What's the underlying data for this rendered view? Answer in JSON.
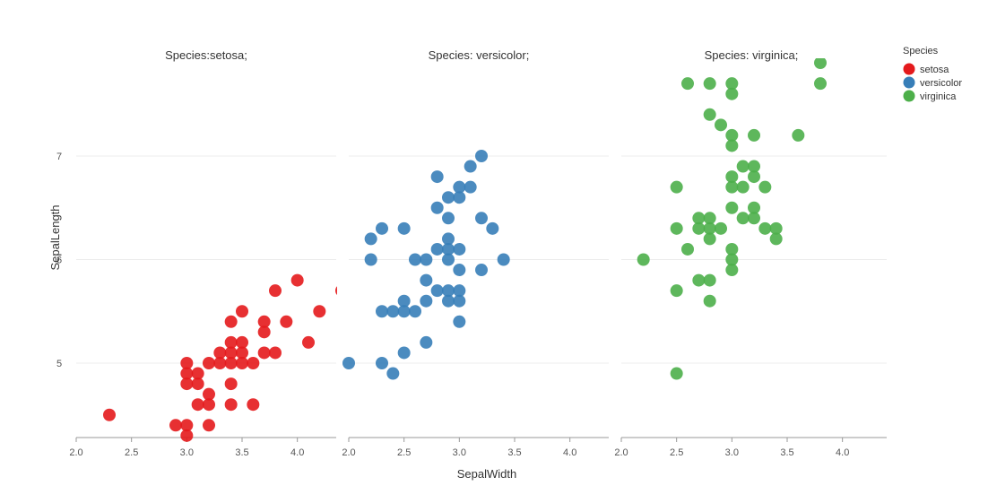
{
  "chart_data": {
    "type": "scatter",
    "xlabel": "SepalWidth",
    "ylabel": "SepalLength",
    "xlim": [
      2.0,
      4.4
    ],
    "ylim": [
      4.3,
      7.9
    ],
    "x_ticks": [
      "2.0",
      "2.5",
      "3.0",
      "3.5",
      "4.0"
    ],
    "y_ticks": [
      "5",
      "6",
      "7"
    ],
    "grid": true,
    "legend": {
      "title": "Species",
      "placement": "top-right",
      "entries": [
        "setosa",
        "versicolor",
        "virginica"
      ]
    },
    "facets": [
      {
        "title": "Species:setosa;",
        "name": "setosa",
        "color": "#e41a1c",
        "points": [
          [
            2.3,
            4.5
          ],
          [
            2.9,
            4.4
          ],
          [
            3.0,
            4.4
          ],
          [
            3.0,
            4.3
          ],
          [
            3.2,
            4.4
          ],
          [
            3.0,
            5.0
          ],
          [
            3.0,
            4.9
          ],
          [
            3.0,
            4.8
          ],
          [
            3.1,
            4.9
          ],
          [
            3.1,
            4.8
          ],
          [
            3.1,
            4.6
          ],
          [
            3.2,
            5.0
          ],
          [
            3.2,
            4.7
          ],
          [
            3.2,
            4.6
          ],
          [
            3.3,
            5.0
          ],
          [
            3.3,
            5.1
          ],
          [
            3.4,
            5.4
          ],
          [
            3.4,
            5.2
          ],
          [
            3.4,
            5.1
          ],
          [
            3.4,
            5.0
          ],
          [
            3.4,
            4.8
          ],
          [
            3.4,
            4.6
          ],
          [
            3.5,
            5.5
          ],
          [
            3.5,
            5.2
          ],
          [
            3.5,
            5.1
          ],
          [
            3.5,
            5.0
          ],
          [
            3.6,
            5.0
          ],
          [
            3.6,
            4.6
          ],
          [
            3.7,
            5.4
          ],
          [
            3.7,
            5.3
          ],
          [
            3.7,
            5.1
          ],
          [
            3.8,
            5.7
          ],
          [
            3.8,
            5.1
          ],
          [
            3.9,
            5.4
          ],
          [
            4.0,
            5.8
          ],
          [
            4.1,
            5.2
          ],
          [
            4.2,
            5.5
          ],
          [
            4.4,
            5.7
          ]
        ]
      },
      {
        "title": "Species: versicolor;",
        "name": "versicolor",
        "color": "#377eb8",
        "points": [
          [
            2.0,
            5.0
          ],
          [
            2.2,
            6.2
          ],
          [
            2.2,
            6.0
          ],
          [
            2.3,
            6.3
          ],
          [
            2.3,
            5.5
          ],
          [
            2.3,
            5.0
          ],
          [
            2.4,
            5.5
          ],
          [
            2.4,
            4.9
          ],
          [
            2.5,
            6.3
          ],
          [
            2.5,
            5.6
          ],
          [
            2.5,
            5.5
          ],
          [
            2.5,
            5.1
          ],
          [
            2.6,
            6.0
          ],
          [
            2.6,
            5.5
          ],
          [
            2.7,
            6.0
          ],
          [
            2.7,
            5.8
          ],
          [
            2.7,
            5.6
          ],
          [
            2.7,
            5.2
          ],
          [
            2.8,
            6.8
          ],
          [
            2.8,
            6.5
          ],
          [
            2.8,
            6.1
          ],
          [
            2.8,
            5.7
          ],
          [
            2.9,
            6.6
          ],
          [
            2.9,
            6.4
          ],
          [
            2.9,
            6.2
          ],
          [
            2.9,
            6.1
          ],
          [
            2.9,
            6.0
          ],
          [
            2.9,
            5.7
          ],
          [
            2.9,
            5.6
          ],
          [
            3.0,
            6.7
          ],
          [
            3.0,
            6.6
          ],
          [
            3.0,
            6.1
          ],
          [
            3.0,
            5.9
          ],
          [
            3.0,
            5.7
          ],
          [
            3.0,
            5.6
          ],
          [
            3.0,
            5.4
          ],
          [
            3.1,
            6.9
          ],
          [
            3.1,
            6.7
          ],
          [
            3.2,
            7.0
          ],
          [
            3.2,
            6.4
          ],
          [
            3.2,
            5.9
          ],
          [
            3.3,
            6.3
          ],
          [
            3.4,
            6.0
          ]
        ]
      },
      {
        "title": "Species: virginica;",
        "name": "virginica",
        "color": "#4daf4a",
        "points": [
          [
            2.2,
            6.0
          ],
          [
            2.5,
            6.7
          ],
          [
            2.5,
            6.3
          ],
          [
            2.5,
            5.7
          ],
          [
            2.5,
            4.9
          ],
          [
            2.6,
            7.7
          ],
          [
            2.6,
            6.1
          ],
          [
            2.7,
            6.4
          ],
          [
            2.7,
            6.3
          ],
          [
            2.7,
            5.8
          ],
          [
            2.8,
            7.7
          ],
          [
            2.8,
            7.4
          ],
          [
            2.8,
            6.4
          ],
          [
            2.8,
            6.3
          ],
          [
            2.8,
            6.2
          ],
          [
            2.8,
            5.8
          ],
          [
            2.8,
            5.6
          ],
          [
            2.9,
            7.3
          ],
          [
            2.9,
            6.3
          ],
          [
            3.0,
            7.7
          ],
          [
            3.0,
            7.6
          ],
          [
            3.0,
            7.2
          ],
          [
            3.0,
            7.1
          ],
          [
            3.0,
            6.8
          ],
          [
            3.0,
            6.7
          ],
          [
            3.0,
            6.5
          ],
          [
            3.0,
            6.1
          ],
          [
            3.0,
            6.0
          ],
          [
            3.0,
            5.9
          ],
          [
            3.1,
            6.9
          ],
          [
            3.1,
            6.7
          ],
          [
            3.1,
            6.4
          ],
          [
            3.2,
            7.2
          ],
          [
            3.2,
            6.9
          ],
          [
            3.2,
            6.8
          ],
          [
            3.2,
            6.5
          ],
          [
            3.2,
            6.4
          ],
          [
            3.3,
            6.7
          ],
          [
            3.3,
            6.3
          ],
          [
            3.4,
            6.3
          ],
          [
            3.4,
            6.2
          ],
          [
            3.6,
            7.2
          ],
          [
            3.8,
            7.9
          ],
          [
            3.8,
            7.7
          ]
        ]
      }
    ]
  }
}
